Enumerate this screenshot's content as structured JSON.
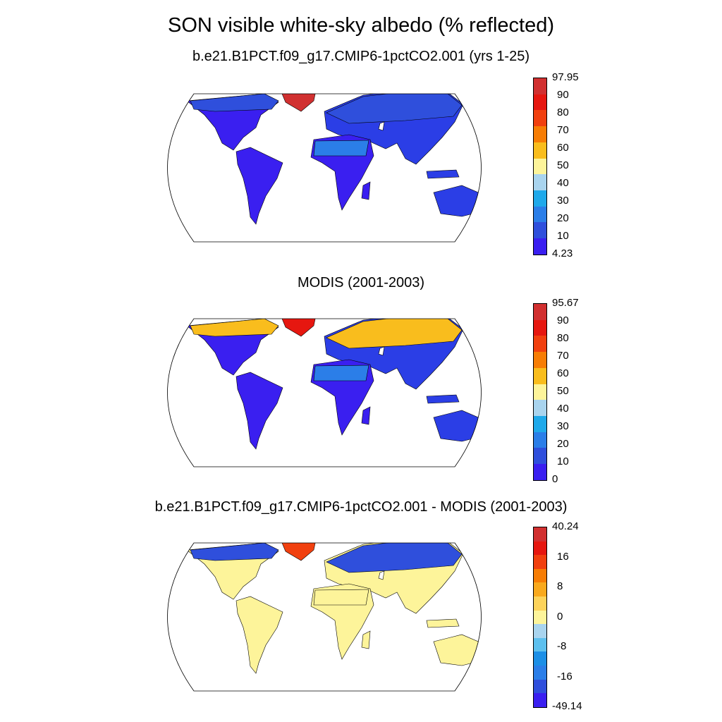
{
  "title": "SON visible white-sky albedo (% reflected)",
  "panels": [
    {
      "title": "b.e21.B1PCT.f09_g17.CMIP6-1pctCO2.001 (yrs 1-25)",
      "colorbar": {
        "colors": [
          "#3a1ff0",
          "#2f4fdc",
          "#2b7ee8",
          "#1fa9ea",
          "#a9d4ee",
          "#fdf49a",
          "#f9bd1d",
          "#f77d05",
          "#f1400f",
          "#e61710",
          "#d13030"
        ],
        "labels": [
          "4.23",
          "10",
          "20",
          "30",
          "40",
          "50",
          "60",
          "70",
          "80",
          "90",
          "97.95"
        ]
      },
      "map": {
        "land": "#2b3ee6",
        "temperate": "#3a1ff0",
        "sahara": "#2b7ee8",
        "arctic": "#2f4fdc",
        "greenland": "#d13030",
        "antarctica": "#d13030"
      }
    },
    {
      "title": "MODIS (2001-2003)",
      "colorbar": {
        "colors": [
          "#3a1ff0",
          "#2f4fdc",
          "#2b7ee8",
          "#1fa9ea",
          "#a9d4ee",
          "#fdf49a",
          "#f9bd1d",
          "#f77d05",
          "#f1400f",
          "#e61710",
          "#d13030"
        ],
        "labels": [
          "0",
          "10",
          "20",
          "30",
          "40",
          "50",
          "60",
          "70",
          "80",
          "90",
          "95.67"
        ]
      },
      "map": {
        "land": "#2b3ee6",
        "temperate": "#3a1ff0",
        "sahara": "#2b7ee8",
        "arctic": "#f9bd1d",
        "greenland": "#e61710",
        "antarctica": "#e61710"
      }
    },
    {
      "title": "b.e21.B1PCT.f09_g17.CMIP6-1pctCO2.001 - MODIS (2001-2003)",
      "colorbar": {
        "colors": [
          "#3a1ff0",
          "#2f4fdc",
          "#2b7ee8",
          "#1c8fe6",
          "#5dc0ee",
          "#a9d4ee",
          "#fdf49a",
          "#fdd35a",
          "#f9a91d",
          "#f77d05",
          "#f1400f",
          "#e61710",
          "#d13030"
        ],
        "labels": [
          "-49.14",
          "",
          "-16",
          "",
          "-8",
          "",
          "0",
          "",
          "8",
          "",
          "16",
          "",
          "40.24"
        ]
      },
      "map": {
        "land": "#fdf49a",
        "temperate": "#fdf49a",
        "sahara": "#fdf49a",
        "arctic": "#2f4fdc",
        "greenland": "#f1400f",
        "antarctica": "#f9bd1d"
      }
    }
  ]
}
